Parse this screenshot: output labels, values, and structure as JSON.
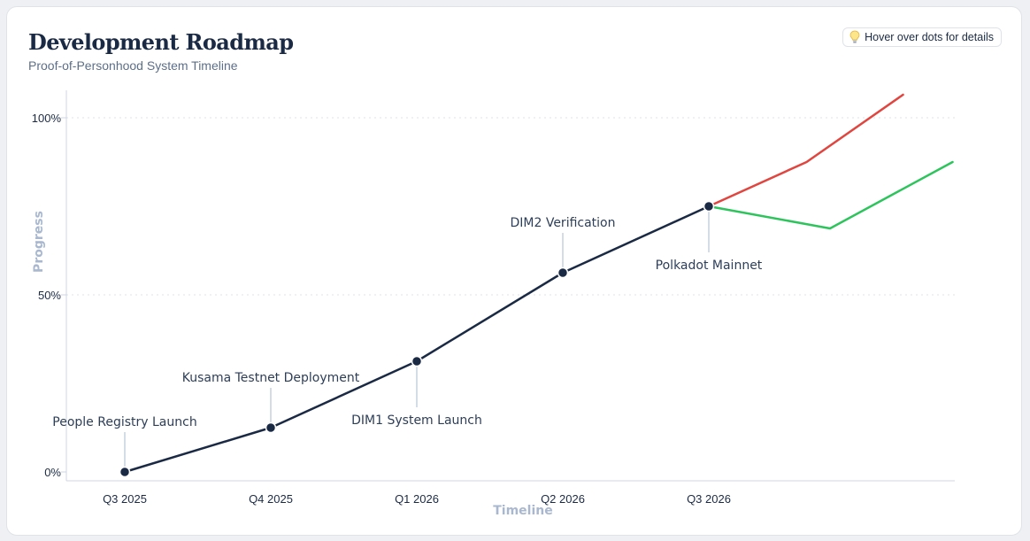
{
  "header": {
    "title": "Development Roadmap",
    "subtitle": "Proof-of-Personhood System Timeline",
    "hint": "Hover over dots for details",
    "hint_icon": "lightbulb-icon"
  },
  "chart_data": {
    "type": "line",
    "title": "Development Roadmap",
    "subtitle": "Proof-of-Personhood System Timeline",
    "xlabel": "Timeline",
    "ylabel": "Progress",
    "x_ticks": [
      "Q3 2025",
      "Q4 2025",
      "Q1 2026",
      "Q2 2026",
      "Q3 2026"
    ],
    "y_ticks": [
      "0%",
      "50%",
      "100%"
    ],
    "ylim": [
      0,
      100
    ],
    "grid": true,
    "series": [
      {
        "color": "#1b2a44",
        "points": [
          {
            "x": 0,
            "y": 0,
            "label": "People Registry Launch",
            "label_pos": "above"
          },
          {
            "x": 1,
            "y": 12.5,
            "label": "Kusama Testnet Deployment",
            "label_pos": "above"
          },
          {
            "x": 2,
            "y": 31.25,
            "label": "DIM1 System Launch",
            "label_pos": "below"
          },
          {
            "x": 3,
            "y": 56.25,
            "label": "DIM2 Verification",
            "label_pos": "above"
          },
          {
            "x": 4,
            "y": 75,
            "label": "Polkadot Mainnet",
            "label_pos": "below"
          }
        ]
      },
      {
        "color": "#e0463f",
        "points": [
          {
            "x": 4,
            "y": 75
          },
          {
            "x": 4.67,
            "y": 87.5
          },
          {
            "x": 5.33,
            "y": 106.5
          }
        ]
      },
      {
        "color": "#2dc45c",
        "points": [
          {
            "x": 4,
            "y": 75
          },
          {
            "x": 4.83,
            "y": 68.75
          },
          {
            "x": 5.67,
            "y": 87.5
          }
        ]
      }
    ]
  }
}
